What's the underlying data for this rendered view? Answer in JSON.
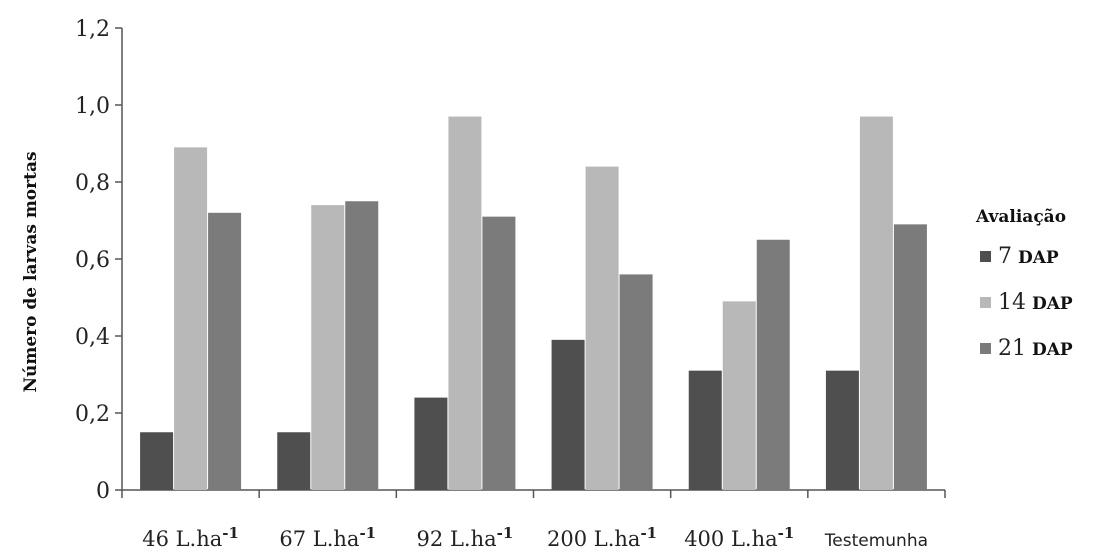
{
  "chart_data": {
    "type": "bar",
    "title": "",
    "xlabel": "",
    "ylabel": "Número de larvas mortas",
    "ylim": [
      0,
      1.2
    ],
    "yticks": [
      "0",
      "0,2",
      "0,4",
      "0,6",
      "0,8",
      "1,0",
      "1,2"
    ],
    "categories": [
      {
        "main": "46 L.ha",
        "sup": "-1"
      },
      {
        "main": "67 L.ha",
        "sup": "-1"
      },
      {
        "main": "92 L.ha",
        "sup": "-1"
      },
      {
        "main": "200 L.ha",
        "sup": "-1"
      },
      {
        "main": "400 L.ha",
        "sup": "-1"
      },
      {
        "main": "Testemunha",
        "sup": ""
      }
    ],
    "series": [
      {
        "name": "7 DAP",
        "num": "7",
        "unit": "DAP",
        "color": "#4f4f4f",
        "values": [
          0.15,
          0.15,
          0.24,
          0.39,
          0.31,
          0.31
        ]
      },
      {
        "name": "14 DAP",
        "num": "14",
        "unit": "DAP",
        "color": "#b8b8b8",
        "values": [
          0.89,
          0.74,
          0.97,
          0.84,
          0.49,
          0.97
        ]
      },
      {
        "name": "21 DAP",
        "num": "21",
        "unit": "DAP",
        "color": "#7b7b7b",
        "values": [
          0.72,
          0.75,
          0.71,
          0.56,
          0.65,
          0.69
        ]
      }
    ],
    "legend": {
      "title": "Avaliação",
      "position": "right"
    },
    "grid": false
  }
}
